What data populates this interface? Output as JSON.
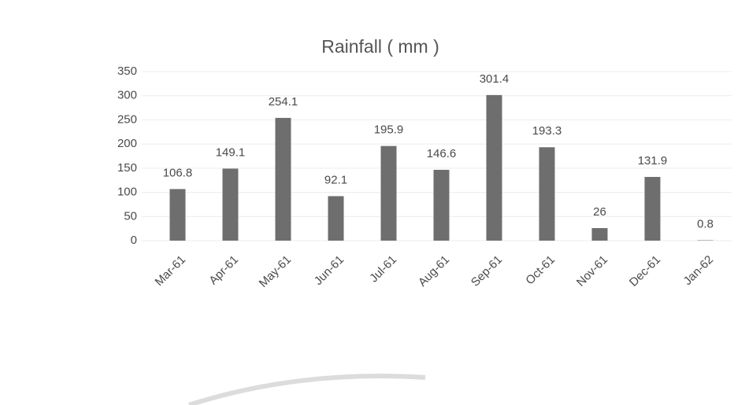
{
  "chart_data": {
    "type": "bar",
    "title": "Rainfall ( mm )",
    "categories": [
      "Mar-61",
      "Apr-61",
      "May-61",
      "Jun-61",
      "Jul-61",
      "Aug-61",
      "Sep-61",
      "Oct-61",
      "Nov-61",
      "Dec-61",
      "Jan-62"
    ],
    "values": [
      106.8,
      149.1,
      254.1,
      92.1,
      195.9,
      146.6,
      301.4,
      193.3,
      26,
      131.9,
      0.8
    ],
    "color": "#6e6e6e",
    "ylim": [
      0,
      350
    ],
    "yticks": [
      0,
      50,
      100,
      150,
      200,
      250,
      300,
      350
    ],
    "grid": true
  }
}
